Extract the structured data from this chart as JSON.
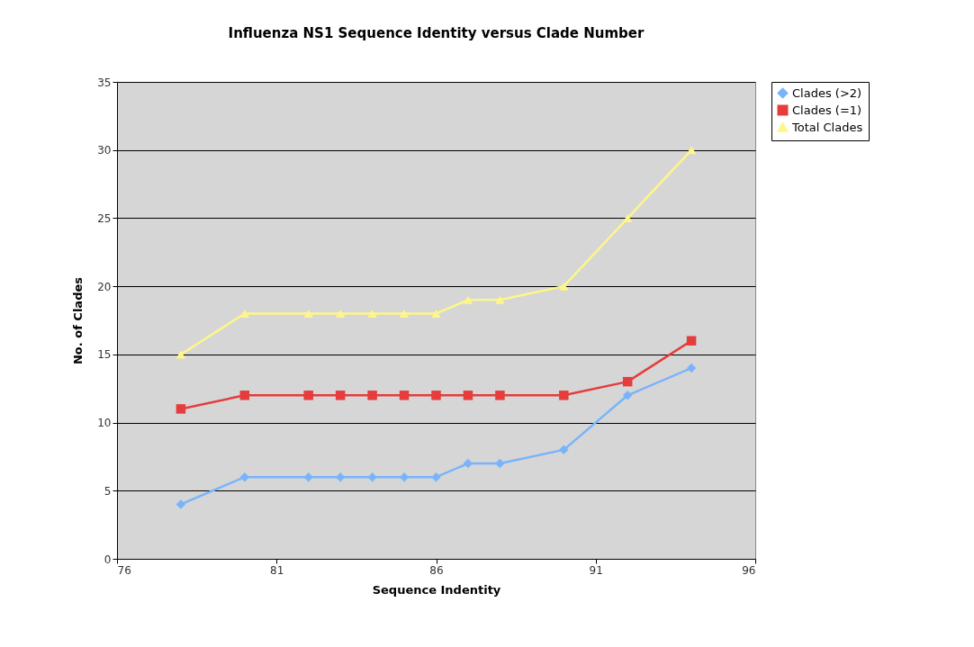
{
  "chart_data": {
    "type": "line",
    "title": "Influenza NS1 Sequence Identity versus Clade Number",
    "xlabel": "Sequence Indentity",
    "ylabel": "No. of Clades",
    "x": [
      78,
      80,
      82,
      83,
      84,
      85,
      86,
      87,
      88,
      90,
      92,
      94
    ],
    "series": [
      {
        "name": "Clades (>2)",
        "color": "#79b4fb",
        "marker": "diamond",
        "values": [
          4,
          6,
          6,
          6,
          6,
          6,
          6,
          7,
          7,
          8,
          12,
          14
        ]
      },
      {
        "name": "Clades (=1)",
        "color": "#e53c3c",
        "marker": "square",
        "values": [
          11,
          12,
          12,
          12,
          12,
          12,
          12,
          12,
          12,
          12,
          13,
          16
        ]
      },
      {
        "name": "Total Clades",
        "color": "#fdf68a",
        "marker": "triangle",
        "values": [
          15,
          18,
          18,
          18,
          18,
          18,
          18,
          19,
          19,
          20,
          25,
          30
        ]
      }
    ],
    "xlim": [
      76,
      96
    ],
    "xticks": [
      76,
      81,
      86,
      91,
      96
    ],
    "ylim": [
      0,
      35
    ],
    "yticks": [
      0,
      5,
      10,
      15,
      20,
      25,
      30,
      35
    ],
    "grid": "y",
    "legend": "right",
    "line_style": "solid"
  }
}
